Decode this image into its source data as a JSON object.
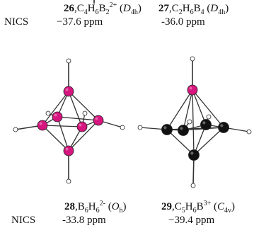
{
  "colors": {
    "atom_b": "#d6157e",
    "atom_c": "#111111",
    "atom_h": "#ffffff",
    "bond": "#333333"
  },
  "top_left": {
    "num": "26",
    "formula": {
      "a": "C",
      "a_n": "4",
      "b": "H",
      "b_n": "6",
      "c": "B",
      "c_n": "2",
      "charge": "2+"
    },
    "sym": {
      "pre": " (",
      "letter": "D",
      "sub": "4h",
      "post": ")"
    },
    "nics_label": "NICS",
    "nics_value": "−37.6 ppm"
  },
  "top_right": {
    "num": "27",
    "formula": {
      "a": "C",
      "a_n": "2",
      "b": "H",
      "b_n": "6",
      "c": "B",
      "c_n": "4"
    },
    "sym": {
      "pre": " (",
      "letter": "D",
      "sub": "4h",
      "post": ")"
    },
    "nics_value": "-36.0 ppm"
  },
  "bottom_left": {
    "num": "28",
    "formula": {
      "a": "B",
      "a_n": "6",
      "b": "H",
      "b_n": "6",
      "charge": "2-"
    },
    "sym": {
      "pre": " (",
      "letter": "O",
      "sub": "h",
      "post": ")"
    },
    "nics_label": "NICS",
    "nics_value": "-33.8 ppm"
  },
  "bottom_right": {
    "num": "29",
    "formula": {
      "a": "C",
      "a_n": "5",
      "b": "H",
      "b_n": "6",
      "c": "B",
      "charge": "3+"
    },
    "sym": {
      "pre": " (",
      "letter": "C",
      "sub": "4v",
      "post": ")"
    },
    "nics_value": "−39.4 ppm"
  }
}
